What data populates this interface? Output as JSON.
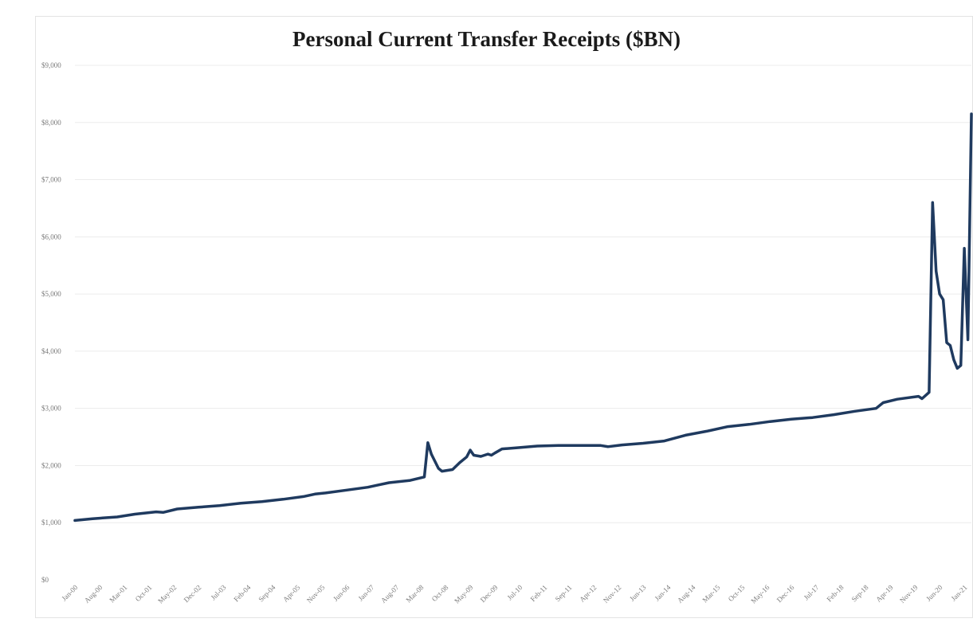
{
  "chart_data": {
    "type": "line",
    "title": "Personal Current Transfer Receipts ($BN)",
    "xlabel": "",
    "ylabel": "",
    "ylim": [
      0,
      9000
    ],
    "y_ticks": [
      "$0",
      "$1,000",
      "$2,000",
      "$3,000",
      "$4,000",
      "$5,000",
      "$6,000",
      "$7,000",
      "$8,000",
      "$9,000"
    ],
    "x_ticks": [
      "Jan-00",
      "Aug-00",
      "Mar-01",
      "Oct-01",
      "May-02",
      "Dec-02",
      "Jul-03",
      "Feb-04",
      "Sep-04",
      "Apr-05",
      "Nov-05",
      "Jun-06",
      "Jan-07",
      "Aug-07",
      "Mar-08",
      "Oct-08",
      "May-09",
      "Dec-09",
      "Jul-10",
      "Feb-11",
      "Sep-11",
      "Apr-12",
      "Nov-12",
      "Jun-13",
      "Jan-14",
      "Aug-14",
      "Mar-15",
      "Oct-15",
      "May-16",
      "Dec-16",
      "Jul-17",
      "Feb-18",
      "Sep-18",
      "Apr-19",
      "Nov-19",
      "Jun-20",
      "Jan-21"
    ],
    "x_range": [
      "Jan-00",
      "Mar-21"
    ],
    "grid": true,
    "legend": "none",
    "series": [
      {
        "color": "#1f3a5f",
        "points": [
          [
            "Jan-00",
            1040
          ],
          [
            "Jun-00",
            1070
          ],
          [
            "Jan-01",
            1100
          ],
          [
            "Jun-01",
            1150
          ],
          [
            "Dec-01",
            1190
          ],
          [
            "Feb-02",
            1180
          ],
          [
            "Jun-02",
            1240
          ],
          [
            "Dec-02",
            1270
          ],
          [
            "Jun-03",
            1300
          ],
          [
            "Dec-03",
            1340
          ],
          [
            "Jun-04",
            1370
          ],
          [
            "Dec-04",
            1410
          ],
          [
            "Jun-05",
            1460
          ],
          [
            "Sep-05",
            1500
          ],
          [
            "Dec-05",
            1520
          ],
          [
            "Jun-06",
            1570
          ],
          [
            "Dec-06",
            1620
          ],
          [
            "Mar-07",
            1660
          ],
          [
            "Jun-07",
            1700
          ],
          [
            "Dec-07",
            1740
          ],
          [
            "Apr-08",
            1800
          ],
          [
            "May-08",
            2400
          ],
          [
            "Jun-08",
            2200
          ],
          [
            "Aug-08",
            1950
          ],
          [
            "Sep-08",
            1900
          ],
          [
            "Dec-08",
            1930
          ],
          [
            "Feb-09",
            2050
          ],
          [
            "Apr-09",
            2150
          ],
          [
            "May-09",
            2270
          ],
          [
            "Jun-09",
            2180
          ],
          [
            "Aug-09",
            2160
          ],
          [
            "Oct-09",
            2200
          ],
          [
            "Nov-09",
            2180
          ],
          [
            "Dec-09",
            2220
          ],
          [
            "Feb-10",
            2290
          ],
          [
            "Jun-10",
            2310
          ],
          [
            "Dec-10",
            2340
          ],
          [
            "Jun-11",
            2350
          ],
          [
            "Dec-11",
            2350
          ],
          [
            "Jun-12",
            2350
          ],
          [
            "Aug-12",
            2330
          ],
          [
            "Dec-12",
            2360
          ],
          [
            "Jun-13",
            2390
          ],
          [
            "Dec-13",
            2430
          ],
          [
            "Jun-14",
            2530
          ],
          [
            "Dec-14",
            2600
          ],
          [
            "Jun-15",
            2680
          ],
          [
            "Dec-15",
            2720
          ],
          [
            "Jun-16",
            2770
          ],
          [
            "Dec-16",
            2810
          ],
          [
            "Jun-17",
            2840
          ],
          [
            "Dec-17",
            2890
          ],
          [
            "Jun-18",
            2950
          ],
          [
            "Dec-18",
            3000
          ],
          [
            "Feb-19",
            3100
          ],
          [
            "Jun-19",
            3160
          ],
          [
            "Dec-19",
            3210
          ],
          [
            "Jan-20",
            3170
          ],
          [
            "Mar-20",
            3280
          ],
          [
            "Apr-20",
            6600
          ],
          [
            "May-20",
            5400
          ],
          [
            "Jun-20",
            5000
          ],
          [
            "Jul-20",
            4900
          ],
          [
            "Aug-20",
            4150
          ],
          [
            "Sep-20",
            4100
          ],
          [
            "Oct-20",
            3850
          ],
          [
            "Nov-20",
            3700
          ],
          [
            "Dec-20",
            3750
          ],
          [
            "Jan-21",
            5800
          ],
          [
            "Feb-21",
            4200
          ],
          [
            "Mar-21",
            8150
          ]
        ]
      }
    ]
  }
}
